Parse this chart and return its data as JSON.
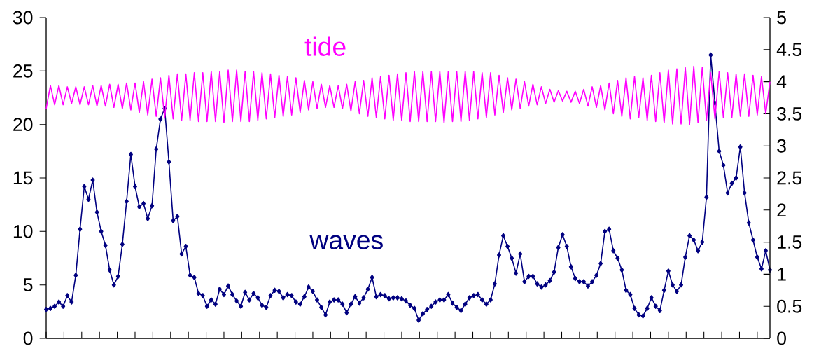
{
  "chart_data": {
    "type": "line",
    "categories": [
      null,
      null,
      null,
      null,
      null,
      null,
      null,
      null,
      null,
      null,
      null,
      null,
      null,
      null,
      null,
      null,
      null,
      null,
      null,
      null,
      null,
      null,
      null,
      null,
      null,
      null,
      null,
      null,
      null,
      null,
      null,
      null,
      null,
      null,
      null,
      null,
      null,
      null,
      null,
      null,
      null,
      null,
      null,
      null,
      null,
      null,
      null,
      null,
      null,
      null,
      null,
      null,
      null,
      null,
      null,
      null,
      null,
      null,
      null,
      null,
      null,
      null,
      null,
      null,
      null,
      null,
      null,
      null,
      null,
      null,
      null,
      null,
      null,
      null,
      null,
      null,
      null,
      null,
      null,
      null,
      null,
      null,
      null,
      null,
      null,
      null,
      null,
      null,
      null,
      null,
      null,
      null,
      null,
      null,
      null,
      null,
      null,
      null,
      null,
      null,
      null,
      null,
      null,
      null,
      null,
      null,
      null,
      null,
      null,
      null,
      null,
      null,
      null,
      null,
      null,
      null,
      null,
      null,
      null,
      null,
      null,
      null,
      null,
      null,
      null,
      null,
      null,
      null,
      null,
      null,
      null,
      null,
      null,
      null,
      null,
      null,
      null,
      null,
      null,
      null,
      null,
      null,
      null,
      null,
      null,
      null,
      null,
      null,
      null,
      null,
      null,
      null,
      null,
      null,
      null,
      null,
      null,
      null,
      null,
      null,
      null,
      null,
      null,
      null,
      null,
      null,
      null,
      null,
      null,
      null,
      null,
      null
    ],
    "series": [
      {
        "name": "waves",
        "color": "#000080",
        "marker": "diamond",
        "values": [
          2.7,
          2.8,
          3.0,
          3.4,
          3.0,
          4.0,
          3.4,
          5.9,
          10.2,
          14.2,
          13.0,
          14.8,
          11.8,
          10.0,
          8.7,
          6.4,
          5.0,
          5.8,
          8.8,
          12.8,
          17.2,
          14.2,
          12.3,
          12.6,
          11.2,
          12.4,
          17.7,
          20.5,
          21.5,
          16.5,
          11.0,
          11.4,
          7.9,
          8.6,
          5.9,
          5.7,
          4.2,
          4.0,
          3.0,
          3.6,
          3.2,
          4.6,
          4.1,
          4.9,
          4.1,
          3.5,
          3.0,
          4.3,
          3.6,
          4.2,
          3.8,
          3.1,
          2.9,
          4.0,
          4.5,
          4.4,
          3.8,
          4.1,
          4.0,
          3.4,
          3.2,
          3.9,
          4.8,
          4.4,
          3.6,
          2.9,
          2.2,
          3.4,
          3.6,
          3.6,
          3.2,
          2.4,
          3.2,
          3.9,
          3.3,
          3.8,
          4.6,
          5.7,
          3.9,
          4.1,
          4.0,
          3.7,
          3.8,
          3.8,
          3.7,
          3.5,
          3.1,
          2.8,
          1.7,
          2.3,
          2.7,
          3.0,
          3.4,
          3.6,
          3.6,
          4.1,
          3.3,
          2.9,
          2.6,
          3.2,
          3.8,
          4.0,
          4.1,
          3.6,
          3.2,
          3.6,
          5.1,
          7.8,
          9.6,
          8.6,
          7.5,
          6.1,
          7.9,
          5.3,
          5.8,
          5.8,
          5.1,
          4.8,
          5.0,
          5.4,
          6.2,
          8.5,
          9.7,
          8.6,
          6.7,
          5.6,
          5.3,
          5.3,
          4.9,
          5.3,
          5.9,
          7.0,
          10.0,
          10.2,
          8.2,
          7.5,
          6.4,
          4.5,
          4.1,
          2.8,
          2.2,
          2.1,
          2.8,
          3.8,
          3.0,
          2.6,
          4.5,
          6.3,
          5.0,
          4.4,
          5.0,
          7.6,
          9.6,
          9.2,
          8.2,
          9.0,
          13.2,
          26.5,
          22.0,
          17.5,
          16.2,
          13.6,
          14.5,
          15.0,
          17.9,
          13.6,
          10.8,
          9.2,
          7.6,
          6.5,
          8.2,
          6.4
        ]
      },
      {
        "name": "tide",
        "color": "#ff00ff",
        "axis": "y2",
        "marker": "none",
        "values": [
          3.58,
          3.94,
          3.64,
          3.94,
          3.64,
          3.92,
          3.66,
          3.92,
          3.64,
          3.92,
          3.64,
          3.94,
          3.62,
          3.94,
          3.62,
          3.96,
          3.6,
          3.96,
          3.58,
          3.98,
          3.56,
          3.98,
          3.52,
          4.0,
          3.48,
          4.04,
          3.46,
          4.06,
          3.44,
          4.1,
          3.42,
          4.12,
          3.4,
          4.12,
          3.4,
          4.14,
          3.38,
          4.14,
          3.38,
          4.16,
          3.38,
          4.16,
          3.36,
          4.18,
          3.38,
          4.18,
          3.38,
          4.16,
          3.38,
          4.16,
          3.4,
          4.14,
          3.42,
          4.12,
          3.44,
          4.1,
          3.46,
          4.08,
          3.48,
          4.06,
          3.52,
          4.02,
          3.56,
          4.0,
          3.58,
          3.96,
          3.6,
          3.94,
          3.6,
          3.94,
          3.58,
          3.96,
          3.54,
          4.0,
          3.5,
          4.02,
          3.46,
          4.06,
          3.44,
          4.08,
          3.42,
          4.1,
          3.4,
          4.12,
          3.4,
          4.14,
          3.38,
          4.16,
          3.38,
          4.16,
          3.38,
          4.16,
          3.38,
          4.16,
          3.36,
          4.16,
          3.38,
          4.16,
          3.38,
          4.16,
          3.4,
          4.16,
          3.42,
          4.14,
          3.44,
          4.14,
          3.48,
          4.1,
          3.52,
          4.06,
          3.56,
          4.04,
          3.58,
          4.0,
          3.62,
          3.96,
          3.64,
          3.92,
          3.66,
          3.88,
          3.68,
          3.86,
          3.7,
          3.85,
          3.68,
          3.85,
          3.66,
          3.88,
          3.62,
          3.92,
          3.6,
          3.94,
          3.56,
          3.98,
          3.5,
          4.02,
          3.46,
          4.06,
          3.42,
          4.08,
          3.44,
          4.06,
          3.4,
          4.1,
          3.38,
          4.14,
          3.36,
          4.18,
          3.34,
          4.2,
          3.34,
          4.22,
          3.33,
          4.24,
          3.36,
          4.22,
          3.4,
          4.14,
          3.42,
          4.16,
          3.44,
          4.14,
          3.44,
          4.12,
          3.46,
          4.12,
          3.46,
          4.1,
          3.48,
          4.08,
          3.5,
          4.0
        ]
      }
    ],
    "ylim": [
      0,
      30
    ],
    "yticks": [
      0,
      5,
      10,
      15,
      20,
      25,
      30
    ],
    "y2lim": [
      0,
      5
    ],
    "y2ticks": [
      0,
      0.5,
      1,
      1.5,
      2,
      2.5,
      3,
      3.5,
      4,
      4.5,
      5
    ],
    "tick_labels": "y",
    "grid": false,
    "line_style": "solid"
  }
}
